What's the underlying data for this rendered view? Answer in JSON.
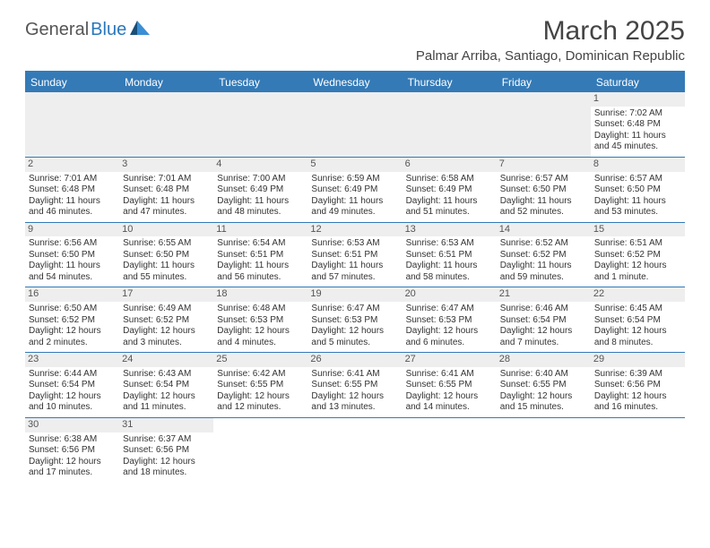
{
  "brand": {
    "part1": "General",
    "part2": "Blue"
  },
  "title": "March 2025",
  "location": "Palmar Arriba, Santiago, Dominican Republic",
  "colors": {
    "header_bg": "#347ab7",
    "header_text": "#ffffff",
    "daynum_bg": "#eeeeee",
    "text": "#333333",
    "title_color": "#444444"
  },
  "dayNames": [
    "Sunday",
    "Monday",
    "Tuesday",
    "Wednesday",
    "Thursday",
    "Friday",
    "Saturday"
  ],
  "leadingBlanks": 6,
  "days": [
    {
      "n": "1",
      "sr": "7:02 AM",
      "ss": "6:48 PM",
      "dl": "11 hours and 45 minutes."
    },
    {
      "n": "2",
      "sr": "7:01 AM",
      "ss": "6:48 PM",
      "dl": "11 hours and 46 minutes."
    },
    {
      "n": "3",
      "sr": "7:01 AM",
      "ss": "6:48 PM",
      "dl": "11 hours and 47 minutes."
    },
    {
      "n": "4",
      "sr": "7:00 AM",
      "ss": "6:49 PM",
      "dl": "11 hours and 48 minutes."
    },
    {
      "n": "5",
      "sr": "6:59 AM",
      "ss": "6:49 PM",
      "dl": "11 hours and 49 minutes."
    },
    {
      "n": "6",
      "sr": "6:58 AM",
      "ss": "6:49 PM",
      "dl": "11 hours and 51 minutes."
    },
    {
      "n": "7",
      "sr": "6:57 AM",
      "ss": "6:50 PM",
      "dl": "11 hours and 52 minutes."
    },
    {
      "n": "8",
      "sr": "6:57 AM",
      "ss": "6:50 PM",
      "dl": "11 hours and 53 minutes."
    },
    {
      "n": "9",
      "sr": "6:56 AM",
      "ss": "6:50 PM",
      "dl": "11 hours and 54 minutes."
    },
    {
      "n": "10",
      "sr": "6:55 AM",
      "ss": "6:50 PM",
      "dl": "11 hours and 55 minutes."
    },
    {
      "n": "11",
      "sr": "6:54 AM",
      "ss": "6:51 PM",
      "dl": "11 hours and 56 minutes."
    },
    {
      "n": "12",
      "sr": "6:53 AM",
      "ss": "6:51 PM",
      "dl": "11 hours and 57 minutes."
    },
    {
      "n": "13",
      "sr": "6:53 AM",
      "ss": "6:51 PM",
      "dl": "11 hours and 58 minutes."
    },
    {
      "n": "14",
      "sr": "6:52 AM",
      "ss": "6:52 PM",
      "dl": "11 hours and 59 minutes."
    },
    {
      "n": "15",
      "sr": "6:51 AM",
      "ss": "6:52 PM",
      "dl": "12 hours and 1 minute."
    },
    {
      "n": "16",
      "sr": "6:50 AM",
      "ss": "6:52 PM",
      "dl": "12 hours and 2 minutes."
    },
    {
      "n": "17",
      "sr": "6:49 AM",
      "ss": "6:52 PM",
      "dl": "12 hours and 3 minutes."
    },
    {
      "n": "18",
      "sr": "6:48 AM",
      "ss": "6:53 PM",
      "dl": "12 hours and 4 minutes."
    },
    {
      "n": "19",
      "sr": "6:47 AM",
      "ss": "6:53 PM",
      "dl": "12 hours and 5 minutes."
    },
    {
      "n": "20",
      "sr": "6:47 AM",
      "ss": "6:53 PM",
      "dl": "12 hours and 6 minutes."
    },
    {
      "n": "21",
      "sr": "6:46 AM",
      "ss": "6:54 PM",
      "dl": "12 hours and 7 minutes."
    },
    {
      "n": "22",
      "sr": "6:45 AM",
      "ss": "6:54 PM",
      "dl": "12 hours and 8 minutes."
    },
    {
      "n": "23",
      "sr": "6:44 AM",
      "ss": "6:54 PM",
      "dl": "12 hours and 10 minutes."
    },
    {
      "n": "24",
      "sr": "6:43 AM",
      "ss": "6:54 PM",
      "dl": "12 hours and 11 minutes."
    },
    {
      "n": "25",
      "sr": "6:42 AM",
      "ss": "6:55 PM",
      "dl": "12 hours and 12 minutes."
    },
    {
      "n": "26",
      "sr": "6:41 AM",
      "ss": "6:55 PM",
      "dl": "12 hours and 13 minutes."
    },
    {
      "n": "27",
      "sr": "6:41 AM",
      "ss": "6:55 PM",
      "dl": "12 hours and 14 minutes."
    },
    {
      "n": "28",
      "sr": "6:40 AM",
      "ss": "6:55 PM",
      "dl": "12 hours and 15 minutes."
    },
    {
      "n": "29",
      "sr": "6:39 AM",
      "ss": "6:56 PM",
      "dl": "12 hours and 16 minutes."
    },
    {
      "n": "30",
      "sr": "6:38 AM",
      "ss": "6:56 PM",
      "dl": "12 hours and 17 minutes."
    },
    {
      "n": "31",
      "sr": "6:37 AM",
      "ss": "6:56 PM",
      "dl": "12 hours and 18 minutes."
    }
  ],
  "labels": {
    "sunrise": "Sunrise:",
    "sunset": "Sunset:",
    "daylight": "Daylight:"
  }
}
